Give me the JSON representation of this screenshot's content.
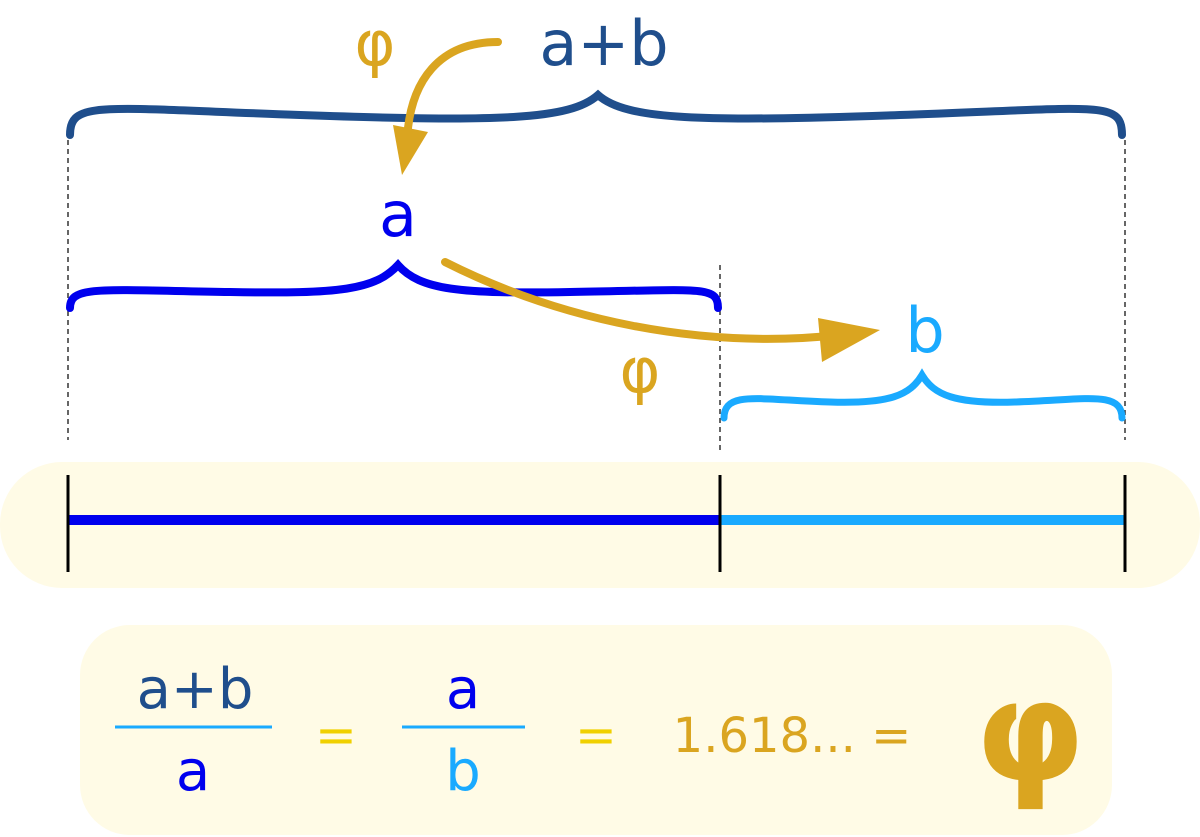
{
  "labels": {
    "sum": "a+b",
    "a": "a",
    "b": "b",
    "phi_top": "φ",
    "phi_mid": "φ"
  },
  "equation": {
    "frac1_num": "a+b",
    "frac1_den": "a",
    "eq1": "=",
    "frac2_num": "a",
    "frac2_den": "b",
    "eq2": "=",
    "value": "1.618... =",
    "phi": "φ"
  },
  "colors": {
    "sum": "#1f4e8c",
    "a": "#0000ee",
    "b": "#1aaaff",
    "gold": "#daa520",
    "equals": "#f0d000",
    "band": "#fffbe6"
  }
}
